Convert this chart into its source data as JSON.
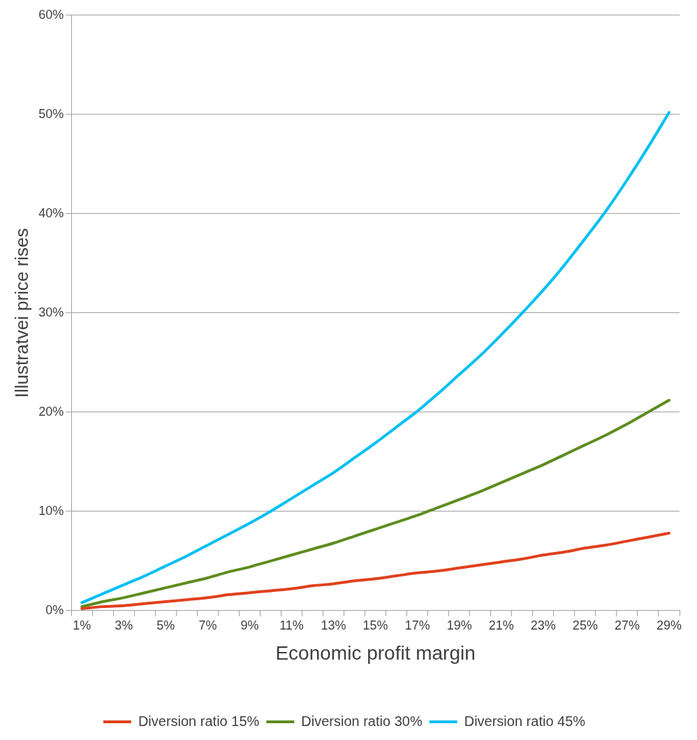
{
  "chart_data": {
    "type": "line",
    "xlabel": "Economic profit margin",
    "ylabel": "Illustratvei price rises",
    "categories": [
      "1%",
      null,
      "3%",
      null,
      "5%",
      null,
      "7%",
      null,
      "9%",
      null,
      "11%",
      null,
      "13%",
      null,
      "15%",
      null,
      "17%",
      null,
      "19%",
      null,
      "21%",
      null,
      "23%",
      null,
      "25%",
      null,
      "27%",
      null,
      "29%"
    ],
    "series": [
      {
        "name": "Diversion ratio 15%",
        "color": "#e0401c",
        "values": [
          0.2,
          0.4,
          0.5,
          0.7,
          0.9,
          1.1,
          1.3,
          1.6,
          1.8,
          2.0,
          2.2,
          2.5,
          2.7,
          3.0,
          3.2,
          3.5,
          3.8,
          4.0,
          4.3,
          4.6,
          4.9,
          5.2,
          5.6,
          5.9,
          6.3,
          6.6,
          7.0,
          7.4,
          7.8
        ]
      },
      {
        "name": "Diversion ratio 30%",
        "color": "#5e8c1f",
        "values": [
          0.4,
          0.9,
          1.3,
          1.8,
          2.3,
          2.8,
          3.3,
          3.9,
          4.4,
          5.0,
          5.6,
          6.2,
          6.8,
          7.5,
          8.2,
          8.9,
          9.6,
          10.4,
          11.2,
          12.0,
          12.9,
          13.8,
          14.7,
          15.7,
          16.7,
          17.7,
          18.8,
          20.0,
          21.2
        ]
      },
      {
        "name": "Diversion ratio 45%",
        "color": "#00bff3",
        "values": [
          0.8,
          1.7,
          2.6,
          3.5,
          4.5,
          5.5,
          6.6,
          7.7,
          8.8,
          10.0,
          11.3,
          12.6,
          13.9,
          15.4,
          16.9,
          18.5,
          20.1,
          21.9,
          23.8,
          25.7,
          27.8,
          30.0,
          32.3,
          34.8,
          37.5,
          40.3,
          43.4,
          46.7,
          50.2
        ]
      }
    ],
    "ylim": [
      0,
      60
    ],
    "yticks": [
      {
        "value": 0,
        "label": "0%"
      },
      {
        "value": 10,
        "label": "10%"
      },
      {
        "value": 20,
        "label": "20%"
      },
      {
        "value": 30,
        "label": "30%"
      },
      {
        "value": 40,
        "label": "40%"
      },
      {
        "value": 50,
        "label": "50%"
      },
      {
        "value": 60,
        "label": "60%"
      }
    ],
    "grid": "y",
    "legend": "bottom",
    "marker": "none",
    "line_style": "solid"
  }
}
